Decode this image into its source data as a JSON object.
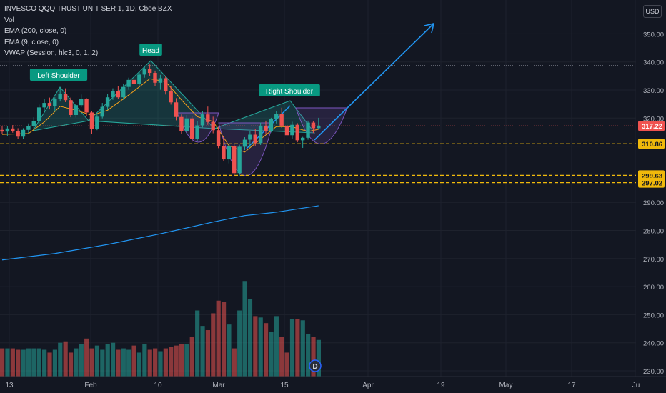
{
  "legend": {
    "symbol": "INVESCO QQQ TRUST UNIT SER 1, 1D, Cboe BZX",
    "vol": "Vol",
    "ema200": "EMA (200, close, 0)",
    "ema9": "EMA (9, close, 0)",
    "vwap": "VWAP (Session, hlc3, 0, 1, 2)"
  },
  "currency_button": "USD",
  "dividend_marker": "D",
  "colors": {
    "background": "#131722",
    "up": "#26a69a",
    "down": "#ef5350",
    "ema200": "#2196f3",
    "ema9": "#f7a21b",
    "pattern_line": "#2196f3",
    "dashed": "#f0b90b",
    "price_line": "#ef5350"
  },
  "chart_data": {
    "type": "candlestick",
    "x_ticks": [
      "13",
      "Feb",
      "10",
      "Mar",
      "15",
      "Apr",
      "19",
      "May",
      "17",
      "Ju"
    ],
    "y_ticks": [
      230,
      240,
      250,
      260,
      270,
      280,
      290,
      300,
      310,
      320,
      330,
      340,
      350
    ],
    "ylim": [
      229,
      361
    ],
    "annotations": [
      "Left Shoulder",
      "Head",
      "Right Shoulder"
    ],
    "price_labels": [
      {
        "value": 317.22,
        "text": "317.22",
        "kind": "last"
      },
      {
        "value": 310.86,
        "text": "310.86",
        "kind": "level"
      },
      {
        "value": 299.63,
        "text": "299.63",
        "kind": "level"
      },
      {
        "value": 297.02,
        "text": "297.02",
        "kind": "level"
      }
    ],
    "candles": [
      {
        "o": 315.8,
        "h": 317.2,
        "l": 314.4,
        "c": 315.2
      },
      {
        "o": 315.2,
        "h": 317.1,
        "l": 313.5,
        "c": 316.3
      },
      {
        "o": 316.3,
        "h": 317.5,
        "l": 314.8,
        "c": 315.4
      },
      {
        "o": 315.4,
        "h": 316.4,
        "l": 312.6,
        "c": 313.4
      },
      {
        "o": 313.4,
        "h": 316.4,
        "l": 312.6,
        "c": 315.8
      },
      {
        "o": 315.8,
        "h": 318.1,
        "l": 314.6,
        "c": 317.2
      },
      {
        "o": 317.2,
        "h": 320.3,
        "l": 316.1,
        "c": 318.9
      },
      {
        "o": 318.9,
        "h": 324.8,
        "l": 318.1,
        "c": 323.8
      },
      {
        "o": 323.8,
        "h": 326.8,
        "l": 322.3,
        "c": 325.4
      },
      {
        "o": 325.4,
        "h": 327.3,
        "l": 323.1,
        "c": 324.2
      },
      {
        "o": 324.2,
        "h": 327.4,
        "l": 322.3,
        "c": 326.7
      },
      {
        "o": 326.7,
        "h": 331.1,
        "l": 325.9,
        "c": 328.6
      },
      {
        "o": 328.6,
        "h": 330.6,
        "l": 325.7,
        "c": 326.4
      },
      {
        "o": 326.4,
        "h": 327.3,
        "l": 320.3,
        "c": 321.1
      },
      {
        "o": 321.1,
        "h": 325.1,
        "l": 320.2,
        "c": 324.6
      },
      {
        "o": 324.6,
        "h": 328.4,
        "l": 323.9,
        "c": 326.9
      },
      {
        "o": 326.9,
        "h": 327.1,
        "l": 320.6,
        "c": 322.0
      },
      {
        "o": 322.0,
        "h": 322.6,
        "l": 314.3,
        "c": 316.2
      },
      {
        "o": 316.2,
        "h": 321.7,
        "l": 315.7,
        "c": 320.5
      },
      {
        "o": 320.5,
        "h": 325.4,
        "l": 319.9,
        "c": 324.0
      },
      {
        "o": 324.0,
        "h": 328.7,
        "l": 322.9,
        "c": 327.4
      },
      {
        "o": 327.4,
        "h": 330.6,
        "l": 326.5,
        "c": 329.6
      },
      {
        "o": 329.6,
        "h": 331.5,
        "l": 326.7,
        "c": 327.4
      },
      {
        "o": 327.4,
        "h": 332.3,
        "l": 326.5,
        "c": 331.1
      },
      {
        "o": 331.1,
        "h": 334.4,
        "l": 330.1,
        "c": 333.6
      },
      {
        "o": 333.6,
        "h": 335.3,
        "l": 331.6,
        "c": 332.1
      },
      {
        "o": 332.1,
        "h": 336.6,
        "l": 331.3,
        "c": 335.5
      },
      {
        "o": 335.5,
        "h": 338.7,
        "l": 334.4,
        "c": 337.4
      },
      {
        "o": 337.4,
        "h": 339.1,
        "l": 334.9,
        "c": 336.1
      },
      {
        "o": 336.1,
        "h": 336.9,
        "l": 331.4,
        "c": 332.6
      },
      {
        "o": 332.6,
        "h": 335.4,
        "l": 330.1,
        "c": 334.2
      },
      {
        "o": 334.2,
        "h": 335.1,
        "l": 328.4,
        "c": 329.6
      },
      {
        "o": 329.6,
        "h": 331.3,
        "l": 324.8,
        "c": 325.6
      },
      {
        "o": 325.6,
        "h": 327.1,
        "l": 319.2,
        "c": 320.4
      },
      {
        "o": 320.4,
        "h": 321.3,
        "l": 314.4,
        "c": 315.3
      },
      {
        "o": 315.3,
        "h": 321.1,
        "l": 314.4,
        "c": 319.9
      },
      {
        "o": 319.9,
        "h": 320.7,
        "l": 311.5,
        "c": 312.6
      },
      {
        "o": 312.6,
        "h": 318.9,
        "l": 311.8,
        "c": 317.4
      },
      {
        "o": 317.4,
        "h": 322.4,
        "l": 316.7,
        "c": 321.3
      },
      {
        "o": 321.3,
        "h": 324.1,
        "l": 317.6,
        "c": 318.6
      },
      {
        "o": 318.6,
        "h": 320.5,
        "l": 314.6,
        "c": 315.7
      },
      {
        "o": 315.7,
        "h": 316.9,
        "l": 309.3,
        "c": 310.1
      },
      {
        "o": 310.1,
        "h": 313.6,
        "l": 304.6,
        "c": 305.3
      },
      {
        "o": 305.3,
        "h": 311.1,
        "l": 303.9,
        "c": 309.9
      },
      {
        "o": 309.9,
        "h": 310.7,
        "l": 299.4,
        "c": 300.4
      },
      {
        "o": 300.4,
        "h": 310.5,
        "l": 299.5,
        "c": 309.8
      },
      {
        "o": 309.8,
        "h": 313.2,
        "l": 308.6,
        "c": 312.3
      },
      {
        "o": 312.3,
        "h": 315.3,
        "l": 309.6,
        "c": 314.1
      },
      {
        "o": 314.1,
        "h": 316.2,
        "l": 310.1,
        "c": 311.1
      },
      {
        "o": 311.1,
        "h": 318.4,
        "l": 310.4,
        "c": 317.3
      },
      {
        "o": 317.3,
        "h": 319.1,
        "l": 314.4,
        "c": 315.3
      },
      {
        "o": 315.3,
        "h": 320.1,
        "l": 314.9,
        "c": 319.6
      },
      {
        "o": 319.6,
        "h": 322.6,
        "l": 318.1,
        "c": 321.6
      },
      {
        "o": 321.6,
        "h": 323.7,
        "l": 316.5,
        "c": 317.3
      },
      {
        "o": 317.3,
        "h": 319.5,
        "l": 313.1,
        "c": 313.9
      },
      {
        "o": 313.9,
        "h": 318.7,
        "l": 312.6,
        "c": 317.6
      },
      {
        "o": 317.6,
        "h": 318.2,
        "l": 311.4,
        "c": 312.1
      },
      {
        "o": 312.1,
        "h": 313.3,
        "l": 309.4,
        "c": 313.0
      },
      {
        "o": 313.0,
        "h": 319.1,
        "l": 312.3,
        "c": 318.4
      },
      {
        "o": 318.4,
        "h": 319.0,
        "l": 314.7,
        "c": 316.4
      },
      {
        "o": 316.4,
        "h": 320.1,
        "l": 315.9,
        "c": 317.2
      }
    ],
    "volume_upper_bound": 262,
    "volume_levels": [
      238,
      238,
      238,
      237.5,
      237.5,
      238,
      238,
      238,
      237.5,
      236.5,
      237.5,
      240,
      240.5,
      236.5,
      238,
      239.5,
      241.5,
      238,
      239,
      237.5,
      239.5,
      240,
      237.5,
      238,
      237.5,
      239,
      236.5,
      239.5,
      237.5,
      238,
      237,
      238,
      238.5,
      239,
      239.5,
      239.5,
      242,
      251.5,
      246,
      244.5,
      250.5,
      255,
      254.5,
      246.5,
      238,
      251.5,
      262,
      255.5,
      249.5,
      249,
      247,
      244,
      249.5,
      242,
      236.5,
      248.5,
      248.5,
      248,
      243,
      242,
      241
    ],
    "ema200": [
      {
        "bar": 0,
        "value": 269.5
      },
      {
        "bar": 10,
        "value": 271.8
      },
      {
        "bar": 20,
        "value": 275.0
      },
      {
        "bar": 30,
        "value": 278.8
      },
      {
        "bar": 40,
        "value": 283.0
      },
      {
        "bar": 46,
        "value": 285.3
      },
      {
        "bar": 52,
        "value": 286.5
      },
      {
        "bar": 60,
        "value": 288.8
      }
    ],
    "ema9": [
      {
        "bar": 0,
        "value": 314.2
      },
      {
        "bar": 5,
        "value": 314.5
      },
      {
        "bar": 8,
        "value": 318.6
      },
      {
        "bar": 11,
        "value": 324.2
      },
      {
        "bar": 14,
        "value": 322.8
      },
      {
        "bar": 17,
        "value": 321.0
      },
      {
        "bar": 20,
        "value": 322.8
      },
      {
        "bar": 24,
        "value": 328.2
      },
      {
        "bar": 28,
        "value": 334.0
      },
      {
        "bar": 31,
        "value": 333.0
      },
      {
        "bar": 34,
        "value": 326.5
      },
      {
        "bar": 37,
        "value": 320.5
      },
      {
        "bar": 40,
        "value": 318.8
      },
      {
        "bar": 43,
        "value": 310.2
      },
      {
        "bar": 46,
        "value": 307.9
      },
      {
        "bar": 49,
        "value": 312.5
      },
      {
        "bar": 52,
        "value": 317.0
      },
      {
        "bar": 55,
        "value": 316.9
      },
      {
        "bar": 58,
        "value": 315.2
      },
      {
        "bar": 60,
        "value": 316.0
      }
    ]
  }
}
